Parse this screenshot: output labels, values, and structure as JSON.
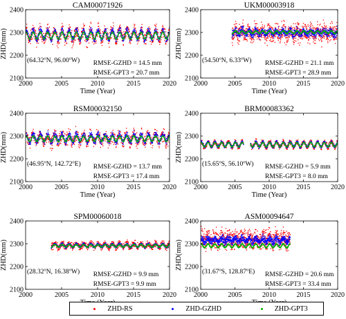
{
  "chart_data": [
    {
      "type": "scatter",
      "title": "CAM00071926",
      "xlabel": "Time (Year)",
      "ylabel": "ZHD(mm)",
      "xlim": [
        2000,
        2020
      ],
      "ylim": [
        2100,
        2400
      ],
      "xticks": [
        "2000",
        "2005",
        "2010",
        "2015",
        "2020"
      ],
      "yticks": [
        "2100",
        "2200",
        "2300",
        "2400"
      ],
      "location": "(64.32°N, 96.00°W)",
      "annotations": [
        "RMSE-GZHD = 14.5 mm",
        "RMSE-GPT3   = 20.7 mm"
      ],
      "series": [
        {
          "name": "ZHD-RS",
          "x_range": [
            2000,
            2020
          ],
          "mean": 2290,
          "amplitude": 22,
          "spread": 58
        },
        {
          "name": "ZHD-GZHD",
          "x_range": [
            2000,
            2020
          ],
          "mean": 2292,
          "amplitude": 20,
          "spread": 25
        },
        {
          "name": "ZHD-GPT3",
          "x_range": [
            2000,
            2020
          ],
          "mean": 2288,
          "amplitude": 15,
          "spread": 5
        }
      ]
    },
    {
      "type": "scatter",
      "title": "UKM00003918",
      "xlabel": "Time (Year)",
      "ylabel": "ZHD(mm)",
      "xlim": [
        2000,
        2020
      ],
      "ylim": [
        2100,
        2400
      ],
      "xticks": [
        "2000",
        "2005",
        "2010",
        "2015",
        "2020"
      ],
      "yticks": [
        "2100",
        "2200",
        "2300",
        "2400"
      ],
      "location": "(54.50°N, 6.33°W)",
      "annotations": [
        "RMSE-GZHD = 21.1 mm",
        "RMSE-GPT3   = 28.9 mm"
      ],
      "series": [
        {
          "name": "ZHD-RS",
          "x_range": [
            2004.5,
            2020
          ],
          "mean": 2300,
          "amplitude": 10,
          "spread": 75
        },
        {
          "name": "ZHD-GZHD",
          "x_range": [
            2004.5,
            2020
          ],
          "mean": 2302,
          "amplitude": 8,
          "spread": 35
        },
        {
          "name": "ZHD-GPT3",
          "x_range": [
            2004.5,
            2020
          ],
          "mean": 2303,
          "amplitude": 6,
          "spread": 4
        }
      ]
    },
    {
      "type": "scatter",
      "title": "RSM00032150",
      "xlabel": "Time (Year)",
      "ylabel": "ZHD(mm)",
      "xlim": [
        2000,
        2020
      ],
      "ylim": [
        2100,
        2400
      ],
      "xticks": [
        "2000",
        "2005",
        "2010",
        "2015",
        "2020"
      ],
      "yticks": [
        "2100",
        "2200",
        "2300",
        "2400"
      ],
      "location": "(46.95°N, 142.72°E)",
      "annotations": [
        "RMSE-GZHD = 13.7 mm",
        "RMSE-GPT3   = 17.4 mm"
      ],
      "series": [
        {
          "name": "ZHD-RS",
          "x_range": [
            2000,
            2020
          ],
          "mean": 2292,
          "amplitude": 18,
          "spread": 55
        },
        {
          "name": "ZHD-GZHD",
          "x_range": [
            2000,
            2020
          ],
          "mean": 2293,
          "amplitude": 16,
          "spread": 28
        },
        {
          "name": "ZHD-GPT3",
          "x_range": [
            2000,
            2020
          ],
          "mean": 2290,
          "amplitude": 12,
          "spread": 4
        }
      ]
    },
    {
      "type": "scatter",
      "title": "BRM00083362",
      "xlabel": "Time (Year)",
      "ylabel": "ZHD(mm)",
      "xlim": [
        2000,
        2020
      ],
      "ylim": [
        2100,
        2400
      ],
      "xticks": [
        "2000",
        "2005",
        "2010",
        "2015",
        "2020"
      ],
      "yticks": [
        "2100",
        "2200",
        "2300",
        "2400"
      ],
      "location": "(15.65°S, 56.10°W)",
      "annotations": [
        "RMSE-GZHD = 5.9 mm",
        "RMSE-GPT3   = 8.0 mm"
      ],
      "series": [
        {
          "name": "ZHD-RS",
          "x_range": [
            2000,
            2020
          ],
          "gaps": [
            [
              2006.2,
              2007.2
            ]
          ],
          "mean": 2265,
          "amplitude": 12,
          "spread": 22
        },
        {
          "name": "ZHD-GZHD",
          "x_range": [
            2000,
            2020
          ],
          "gaps": [
            [
              2006.2,
              2007.2
            ]
          ],
          "mean": 2265,
          "amplitude": 11,
          "spread": 12
        },
        {
          "name": "ZHD-GPT3",
          "x_range": [
            2000,
            2020
          ],
          "gaps": [
            [
              2006.2,
              2007.2
            ]
          ],
          "mean": 2264,
          "amplitude": 10,
          "spread": 3
        }
      ]
    },
    {
      "type": "scatter",
      "title": "SPM00060018",
      "xlabel": "Time (Year)",
      "ylabel": "ZHD(mm)",
      "xlim": [
        2000,
        2020
      ],
      "ylim": [
        2100,
        2400
      ],
      "xticks": [
        "2000",
        "2005",
        "2010",
        "2015",
        "2020"
      ],
      "yticks": [
        "2100",
        "2200",
        "2300",
        "2400"
      ],
      "location": "(28.32°N, 16.38°W)",
      "annotations": [
        "RMSE-GZHD = 9.9 mm",
        "RMSE-GPT3   = 9.9 mm"
      ],
      "series": [
        {
          "name": "ZHD-RS",
          "x_range": [
            2003.5,
            2020
          ],
          "mean": 2295,
          "amplitude": 8,
          "spread": 28
        },
        {
          "name": "ZHD-GZHD",
          "x_range": [
            2003.5,
            2020
          ],
          "mean": 2294,
          "amplitude": 7,
          "spread": 10
        },
        {
          "name": "ZHD-GPT3",
          "x_range": [
            2003.5,
            2020
          ],
          "mean": 2293,
          "amplitude": 6,
          "spread": 3
        }
      ]
    },
    {
      "type": "scatter",
      "title": "ASM00094647",
      "xlabel": "Time (Year)",
      "ylabel": "ZHD(mm)",
      "xlim": [
        2000,
        2020
      ],
      "ylim": [
        2100,
        2400
      ],
      "xticks": [
        "2000",
        "2005",
        "2010",
        "2015",
        "2020"
      ],
      "yticks": [
        "2100",
        "2200",
        "2300",
        "2400"
      ],
      "location": "(31.67°S, 128.87°E)",
      "annotations": [
        "RMSE-GZHD = 20.6 mm",
        "RMSE-GPT3   = 33.4 mm"
      ],
      "series": [
        {
          "name": "ZHD-RS",
          "x_range": [
            2000,
            2013
          ],
          "mean": 2322,
          "amplitude": 10,
          "spread": 80
        },
        {
          "name": "ZHD-GZHD",
          "x_range": [
            2000,
            2013
          ],
          "mean": 2318,
          "amplitude": 8,
          "spread": 30
        },
        {
          "name": "ZHD-GPT3",
          "x_range": [
            2000,
            2013
          ],
          "mean": 2293,
          "amplitude": 8,
          "spread": 5
        }
      ]
    }
  ],
  "legend": {
    "items": [
      {
        "label": "ZHD-RS",
        "color": "#ff0000"
      },
      {
        "label": "ZHD-GZHD",
        "color": "#0000ff"
      },
      {
        "label": "ZHD-GPT3",
        "color": "#00b000"
      }
    ]
  }
}
